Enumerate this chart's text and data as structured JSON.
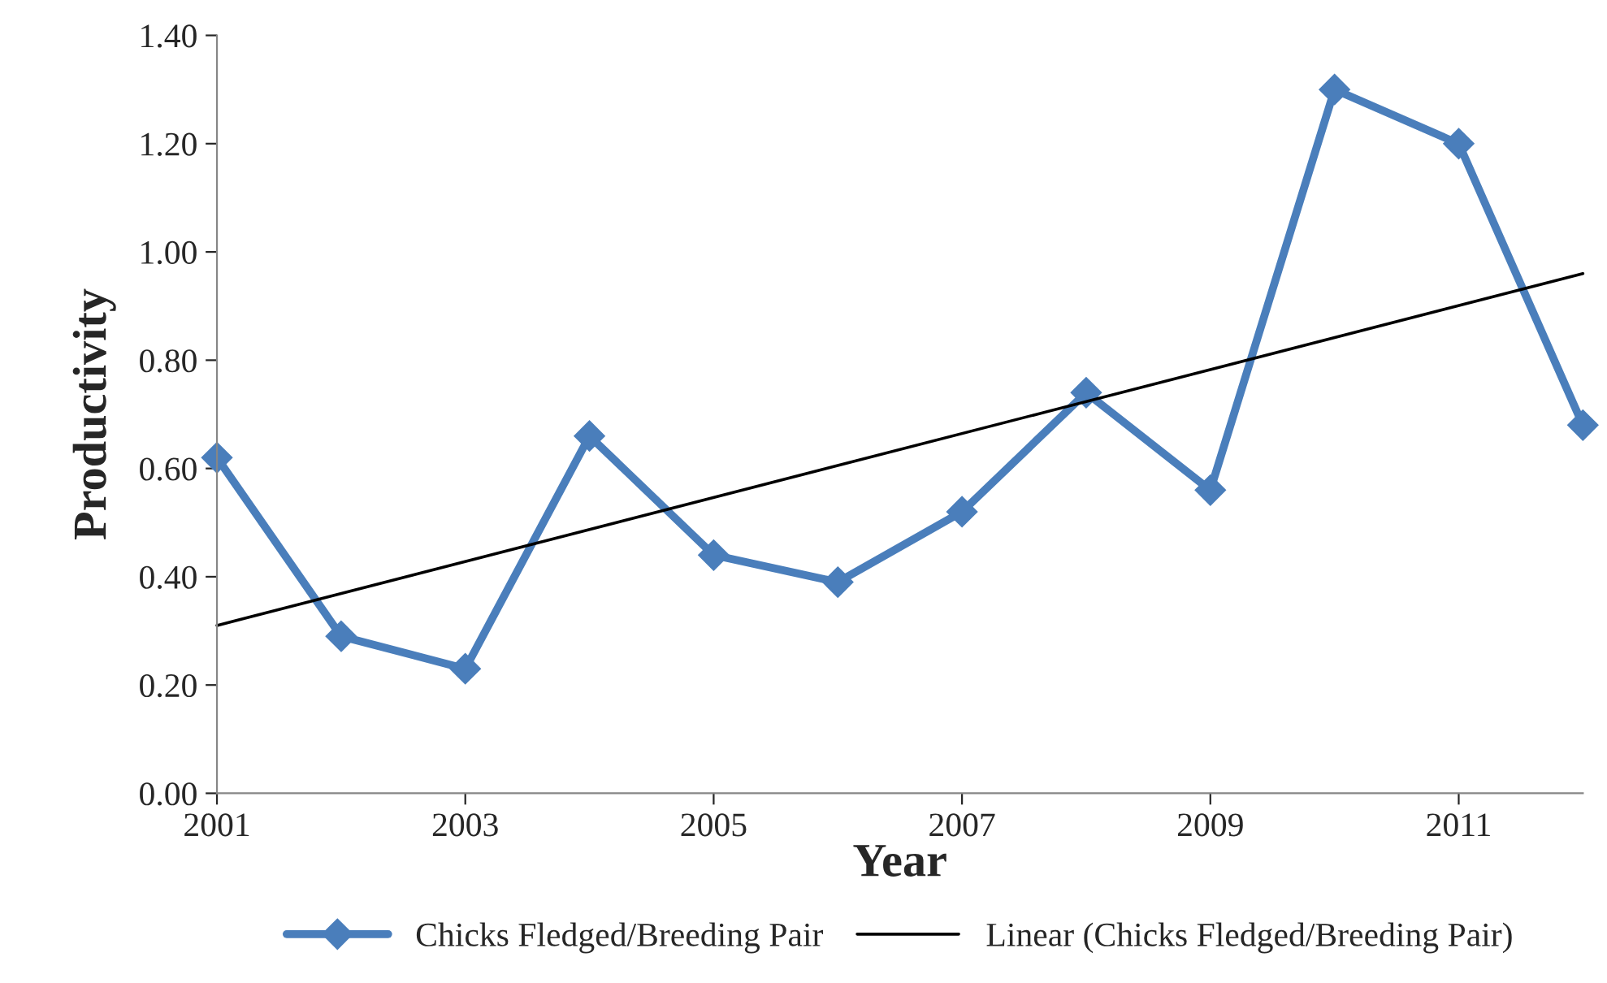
{
  "chart_data": {
    "type": "line",
    "xlabel": "Year",
    "ylabel": "Productivity",
    "xlim": [
      2001,
      2012
    ],
    "xticks": [
      2001,
      2003,
      2005,
      2007,
      2009,
      2011
    ],
    "ylim": [
      0,
      1.4
    ],
    "yticks": [
      {
        "value": 0,
        "label": "0.00"
      },
      {
        "value": 0.2,
        "label": "0.20"
      },
      {
        "value": 0.4,
        "label": "0.40"
      },
      {
        "value": 0.6,
        "label": "0.60"
      },
      {
        "value": 0.8,
        "label": "0.80"
      },
      {
        "value": 1.0,
        "label": "1.00"
      },
      {
        "value": 1.2,
        "label": "1.20"
      },
      {
        "value": 1.4,
        "label": "1.40"
      }
    ],
    "grid": false,
    "legend": "bottom",
    "series": [
      {
        "name": "Chicks Fledged/Breeding Pair",
        "color": "#4a7ebb",
        "marker": "diamond",
        "x": [
          2001,
          2002,
          2003,
          2004,
          2005,
          2006,
          2007,
          2008,
          2009,
          2010,
          2011,
          2012
        ],
        "values": [
          0.62,
          0.29,
          0.23,
          0.66,
          0.44,
          0.39,
          0.52,
          0.74,
          0.56,
          1.3,
          1.2,
          0.68
        ]
      },
      {
        "name": "Linear (Chicks Fledged/Breeding Pair)",
        "color": "#000000",
        "marker": "none",
        "x": [
          2001,
          2012
        ],
        "values": [
          0.31,
          0.96
        ]
      }
    ]
  }
}
